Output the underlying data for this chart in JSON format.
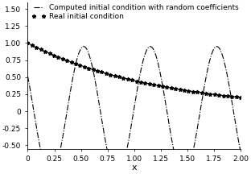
{
  "title": "",
  "xlabel": "x",
  "ylabel": "",
  "xlim": [
    0,
    2.0
  ],
  "ylim": [
    -0.55,
    1.6
  ],
  "xticks": [
    0,
    0.25,
    0.5,
    0.75,
    1.0,
    1.25,
    1.5,
    1.75,
    2.0
  ],
  "yticks": [
    -0.5,
    -0.25,
    0,
    0.25,
    0.5,
    0.75,
    1.0,
    1.25,
    1.5
  ],
  "real_label": "Real initial condition",
  "computed_label": "Computed initial condition with random coefficients",
  "line_color": "black",
  "background_color": "#ffffff",
  "n_points": 1000,
  "real_n_markers": 50,
  "legend_fontsize": 6.5,
  "tick_fontsize": 6.5,
  "xlabel_fontsize": 8
}
